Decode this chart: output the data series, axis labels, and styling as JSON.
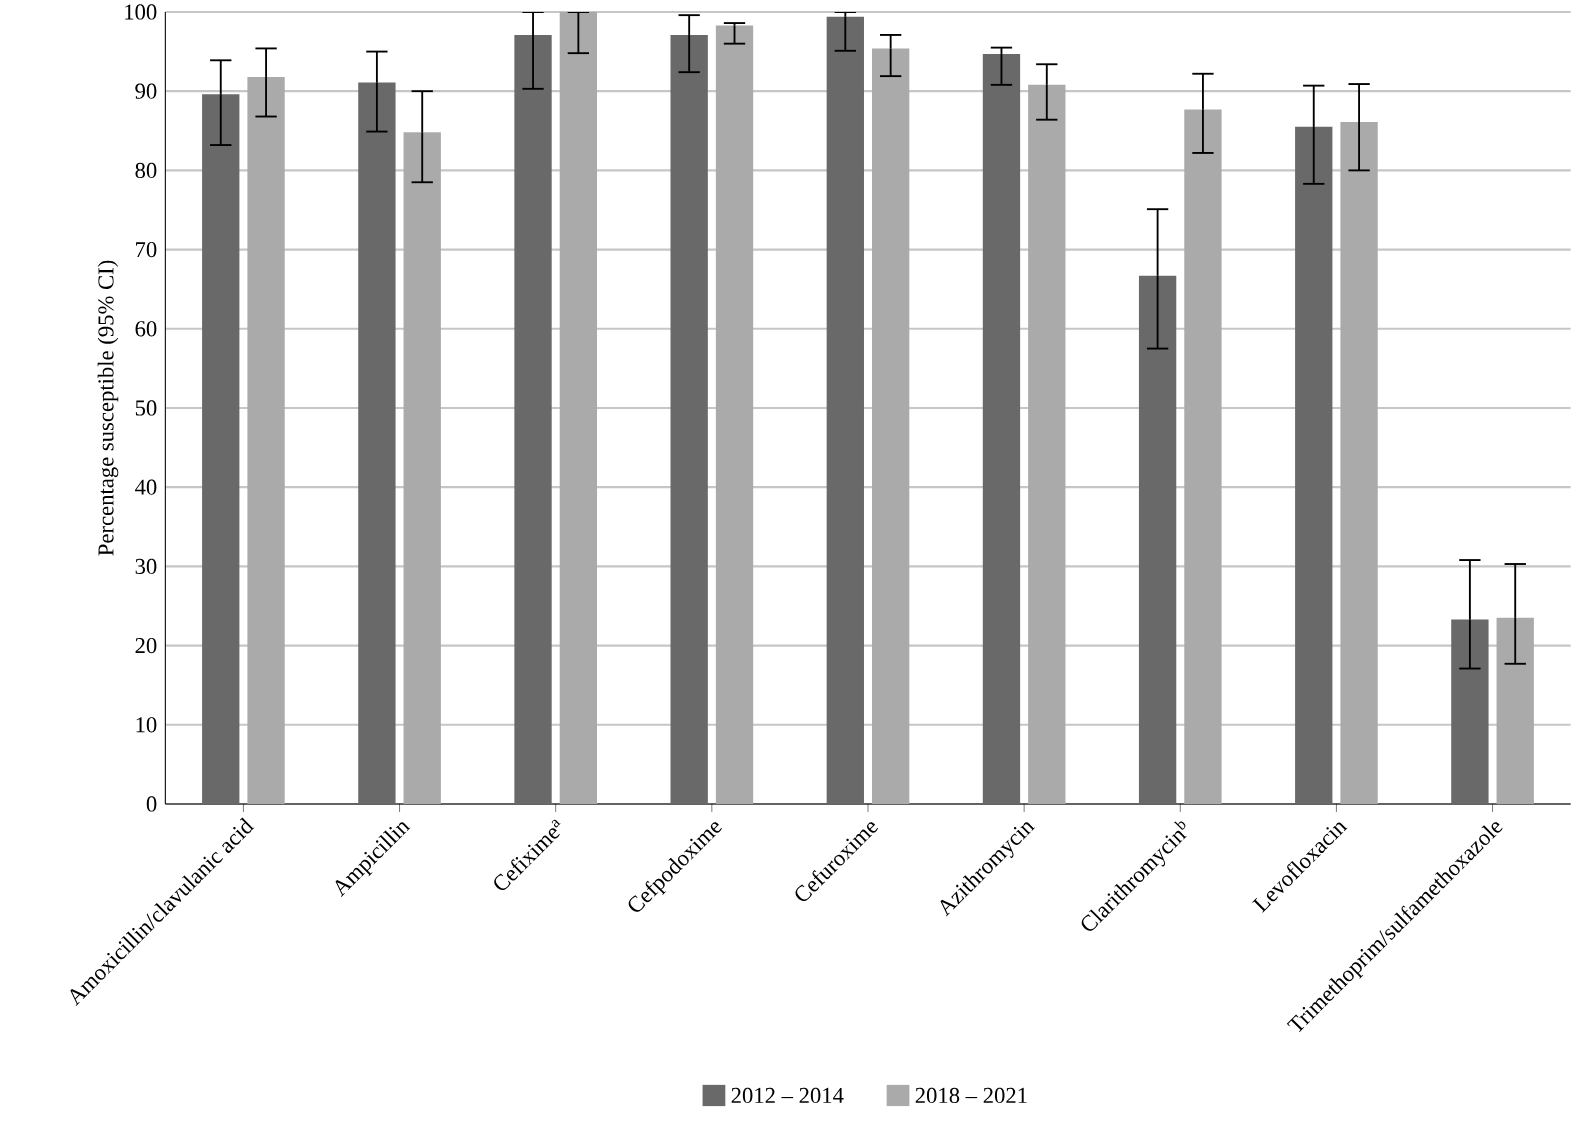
{
  "chart_data": {
    "type": "bar",
    "ylabel": "Percentage susceptible (95% CI)",
    "categories": [
      "Amoxicillin/clavulanic acid",
      "Ampicillin",
      "Cefixime$^{a}$",
      "Cefpodoxime",
      "Cefuroxime",
      "Azithromycin",
      "Clarithromycin$^{b}$",
      "Levofloxacin",
      "Trimethoprim/sulfamethoxazole"
    ],
    "series": [
      {
        "name": "2012 – 2014",
        "color": "#696969",
        "values": [
          89.6,
          91.1,
          97.1,
          97.1,
          99.4,
          94.7,
          66.7,
          85.5,
          23.3
        ],
        "errors": [
          [
            83.2,
            93.9
          ],
          [
            84.9,
            95.0
          ],
          [
            90.3,
            100
          ],
          [
            92.4,
            99.6
          ],
          [
            95.1,
            100
          ],
          [
            90.8,
            95.5
          ],
          [
            57.5,
            75.1
          ],
          [
            78.3,
            90.7
          ],
          [
            17.1,
            30.8
          ]
        ]
      },
      {
        "name": "2018 – 2021",
        "color": "#aaaaaa",
        "values": [
          91.8,
          84.8,
          100,
          98.3,
          95.4,
          90.8,
          87.7,
          86.1,
          23.5
        ],
        "errors": [
          [
            86.8,
            95.4
          ],
          [
            78.5,
            90.0
          ],
          [
            94.8,
            100
          ],
          [
            96.0,
            98.6
          ],
          [
            91.9,
            97.1
          ],
          [
            86.4,
            93.4
          ],
          [
            82.2,
            92.2
          ],
          [
            80.0,
            90.9
          ],
          [
            17.7,
            30.3
          ]
        ]
      }
    ],
    "ylim": [
      0,
      100
    ],
    "yticks": [
      0,
      10,
      20,
      30,
      40,
      50,
      60,
      70,
      80,
      90,
      100
    ],
    "grid": "y",
    "legend": "bottom"
  }
}
